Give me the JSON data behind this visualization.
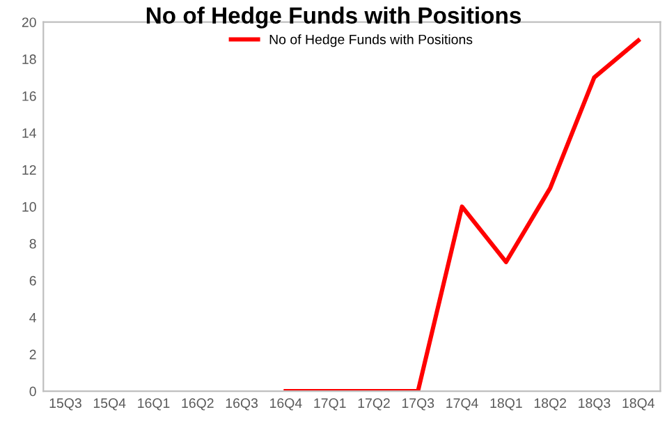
{
  "chart_data": {
    "type": "line",
    "title": "No of Hedge Funds with Positions",
    "categories": [
      "15Q3",
      "15Q4",
      "16Q1",
      "16Q2",
      "16Q3",
      "16Q4",
      "17Q1",
      "17Q2",
      "17Q3",
      "17Q4",
      "18Q1",
      "18Q2",
      "18Q3",
      "18Q4"
    ],
    "series": [
      {
        "name": "No of Hedge Funds with Positions",
        "color": "#ff0000",
        "values": [
          null,
          null,
          null,
          null,
          null,
          0,
          0,
          0,
          0,
          10,
          7,
          11,
          17,
          19
        ]
      }
    ],
    "ylim": [
      0,
      20
    ],
    "yticks": [
      0,
      2,
      4,
      6,
      8,
      10,
      12,
      14,
      16,
      18,
      20
    ],
    "grid": false,
    "legend": "top",
    "marker": "none",
    "line_style": "solid"
  }
}
